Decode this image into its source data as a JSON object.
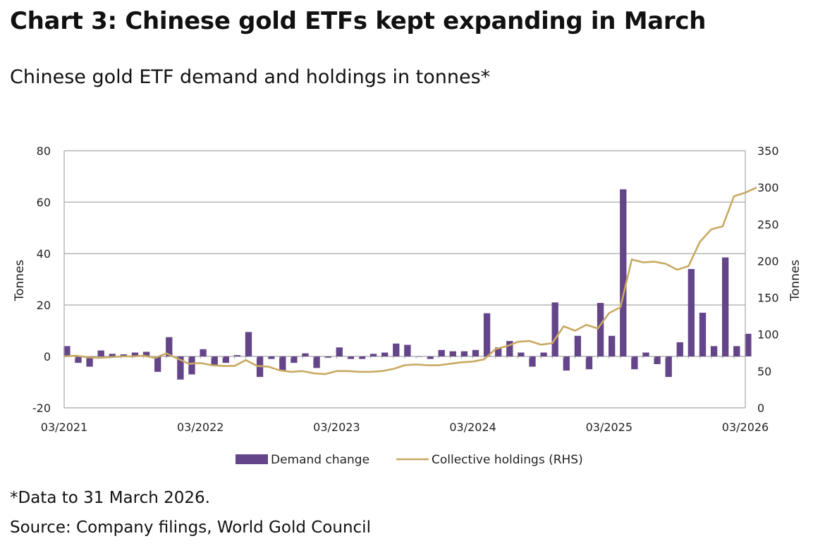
{
  "header": {
    "title": "Chart 3: Chinese gold ETFs kept expanding in March",
    "subtitle": "Chinese gold ETF demand and holdings in tonnes*"
  },
  "footer": {
    "note": "*Data to 31 March 2026.",
    "source": "Source: Company filings, World Gold Council"
  },
  "chart_data": {
    "type": "bar",
    "left_axis": {
      "label": "Tonnes",
      "ticks": [
        "80",
        "60",
        "40",
        "20",
        "0",
        "-20"
      ],
      "range": [
        -20,
        80
      ]
    },
    "right_axis": {
      "label": "Tonnes",
      "ticks": [
        "350",
        "300",
        "250",
        "200",
        "150",
        "100",
        "50",
        "0"
      ],
      "range": [
        0,
        350
      ]
    },
    "x_axis": {
      "tick_labels": [
        "03/2021",
        "03/2022",
        "03/2023",
        "03/2024",
        "03/2025",
        "03/2026"
      ],
      "start_month": "03/2021",
      "end_month": "03/2026"
    },
    "grid": true,
    "legend_position": "bottom",
    "series": [
      {
        "name": "Demand change",
        "kind": "bar",
        "axis": "left",
        "color": "#654589",
        "values": [
          4,
          -2.5,
          -4,
          2.3,
          1,
          0.8,
          1.5,
          1.8,
          -6,
          7.5,
          -9,
          -7,
          2.8,
          -3.5,
          -2.5,
          0.5,
          9.5,
          -8,
          -1,
          -5.5,
          -2.5,
          1.2,
          -4.5,
          -0.5,
          3.5,
          -1,
          -1,
          1,
          1.5,
          5,
          4.5,
          0,
          -1,
          2.5,
          2,
          2,
          2.5,
          16.8,
          3.5,
          6,
          1.5,
          -4,
          1.5,
          21,
          -5.5,
          8,
          -5,
          20.8,
          8,
          65,
          -5,
          1.5,
          -3,
          -8,
          5.5,
          34,
          17,
          4,
          38.5,
          4,
          8.8
        ]
      },
      {
        "name": "Collective holdings (RHS)",
        "kind": "line",
        "axis": "right",
        "color": "#C9A961",
        "values": [
          70,
          71,
          69,
          68,
          69,
          70,
          70,
          71,
          68,
          74,
          67,
          60,
          61,
          58,
          57,
          57,
          65,
          57,
          56,
          51,
          49,
          50,
          47,
          46,
          50,
          50,
          49,
          49,
          50,
          53,
          58,
          59,
          58,
          58,
          60,
          62,
          63,
          66,
          80,
          84,
          90,
          91,
          86,
          88,
          111,
          105,
          113,
          108,
          129,
          137,
          202,
          198,
          199,
          196,
          188,
          193,
          226,
          243,
          247,
          288,
          293,
          300
        ]
      }
    ]
  }
}
